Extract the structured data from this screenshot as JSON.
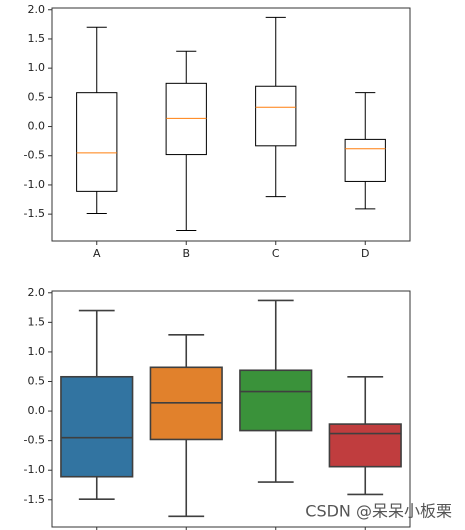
{
  "chart_data": [
    {
      "type": "box",
      "categories": [
        "A",
        "B",
        "C",
        "D"
      ],
      "whishi": [
        1.7,
        1.29,
        1.87,
        0.58
      ],
      "q3": [
        0.58,
        0.74,
        0.69,
        -0.22
      ],
      "med": [
        -0.45,
        0.14,
        0.33,
        -0.38
      ],
      "q1": [
        -1.11,
        -0.48,
        -0.33,
        -0.94
      ],
      "whislo": [
        -1.49,
        -1.78,
        -1.2,
        -1.41
      ],
      "box_color": "#ffffff",
      "edge_color": "#000000",
      "median_color": "#ff7f0e",
      "ylim": [
        -1.96,
        2.03
      ],
      "yticks": [
        {
          "value": 2.0,
          "label": "2.0"
        },
        {
          "value": 1.5,
          "label": "1.5"
        },
        {
          "value": 1.0,
          "label": "1.0"
        },
        {
          "value": 0.5,
          "label": "0.5"
        },
        {
          "value": 0.0,
          "label": "0.0"
        },
        {
          "value": -0.5,
          "label": "-0.5"
        },
        {
          "value": -1.0,
          "label": "-1.0"
        },
        {
          "value": -1.5,
          "label": "-1.5"
        }
      ]
    },
    {
      "type": "box",
      "categories": [
        null,
        null,
        null,
        null
      ],
      "whishi": [
        1.7,
        1.29,
        1.87,
        0.58
      ],
      "q3": [
        0.58,
        0.74,
        0.69,
        -0.22
      ],
      "med": [
        -0.45,
        0.14,
        0.33,
        -0.38
      ],
      "q1": [
        -1.11,
        -0.48,
        -0.33,
        -0.94
      ],
      "whislo": [
        -1.49,
        -1.78,
        -1.2,
        -1.41
      ],
      "box_colors": [
        "#3274a1",
        "#e1812c",
        "#3a923a",
        "#c03d3e"
      ],
      "edge_color": "#3f3f3f",
      "median_color": "#3f3f3f",
      "ylim": [
        -1.96,
        2.03
      ],
      "yticks": [
        {
          "value": 2.0,
          "label": "2.0"
        },
        {
          "value": 1.5,
          "label": "1.5"
        },
        {
          "value": 1.0,
          "label": "1.0"
        },
        {
          "value": 0.5,
          "label": "0.5"
        },
        {
          "value": 0.0,
          "label": "0.0"
        },
        {
          "value": -0.5,
          "label": "-0.5"
        },
        {
          "value": -1.0,
          "label": "-1.0"
        },
        {
          "value": -1.5,
          "label": "-1.5"
        }
      ]
    }
  ],
  "watermark": "CSDN @呆呆小板栗"
}
